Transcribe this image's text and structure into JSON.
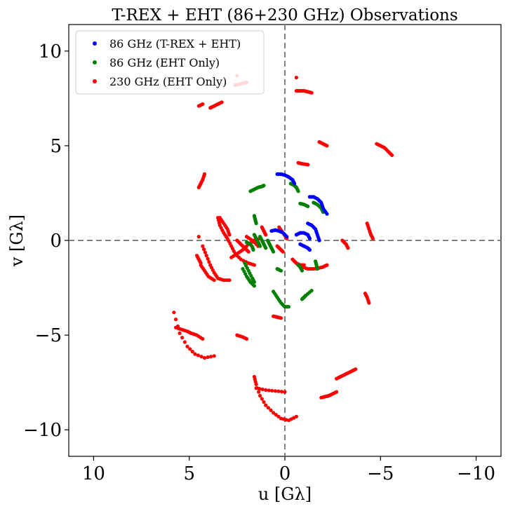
{
  "chart_data": {
    "type": "scatter",
    "title": "T-REX + EHT (86+230 GHz) Observations",
    "xlabel": "u [Gλ]",
    "ylabel": "v [Gλ]",
    "xlim": [
      11.3,
      -11.3
    ],
    "ylim": [
      -11.4,
      11.4
    ],
    "x_axis_reversed": true,
    "xticks": [
      10,
      5,
      0,
      -5,
      -10
    ],
    "yticks": [
      10,
      5,
      0,
      -5,
      -10
    ],
    "xtick_labels": [
      "10",
      "5",
      "0",
      "−5",
      "−10"
    ],
    "ytick_labels": [
      "10",
      "5",
      "0",
      "−5",
      "−10"
    ],
    "grid": false,
    "reference_lines": {
      "u": 0,
      "v": 0,
      "style": "dashed",
      "color": "#808080"
    },
    "legend": {
      "placement": "top-left",
      "entries": [
        "86 GHz (T-REX + EHT)",
        "86 GHz (EHT Only)",
        "230 GHz (EHT Only)"
      ]
    },
    "series": [
      {
        "name": "86 GHz (T-REX + EHT)",
        "color": "#0000ff",
        "arcs": [
          {
            "u": [
              0.4,
              0.2,
              0.0,
              -0.2,
              -0.4,
              -0.5
            ],
            "v": [
              3.5,
              3.5,
              3.45,
              3.35,
              3.2,
              3.0
            ]
          },
          {
            "u": [
              -1.3,
              -1.5,
              -1.7,
              -1.9,
              -2.0,
              -2.2
            ],
            "v": [
              2.3,
              2.3,
              2.2,
              2.0,
              1.7,
              1.4
            ]
          },
          {
            "u": [
              0.7,
              0.5,
              0.3,
              0.1,
              -0.1
            ],
            "v": [
              0.5,
              0.55,
              0.5,
              0.4,
              0.2
            ]
          },
          {
            "u": [
              -0.6,
              -0.8,
              -1.0,
              -1.2,
              -1.3
            ],
            "v": [
              0.3,
              0.4,
              0.4,
              0.3,
              0.1
            ]
          },
          {
            "u": [
              -1.2,
              -1.4,
              -1.6,
              -1.7,
              -1.8
            ],
            "v": [
              0.9,
              0.8,
              0.6,
              0.3,
              0.0
            ]
          },
          {
            "u": [
              -0.8,
              -1.0,
              -1.2,
              -1.3
            ],
            "v": [
              -0.2,
              -0.3,
              -0.4,
              -0.5
            ]
          }
        ]
      },
      {
        "name": "86 GHz (EHT Only)",
        "color": "#008000",
        "arcs": [
          {
            "u": [
              1.8,
              1.6,
              1.4,
              1.2,
              1.1
            ],
            "v": [
              2.6,
              2.7,
              2.8,
              2.85,
              2.9
            ]
          },
          {
            "u": [
              -0.3,
              -0.5,
              -0.6,
              -0.7
            ],
            "v": [
              3.0,
              2.9,
              2.8,
              2.6
            ]
          },
          {
            "u": [
              1.6,
              1.55,
              1.5
            ],
            "v": [
              1.3,
              1.1,
              0.9
            ]
          },
          {
            "u": [
              -0.8,
              -1.0,
              -1.2
            ],
            "v": [
              1.95,
              1.9,
              1.8
            ]
          },
          {
            "u": [
              -1.5,
              -1.7,
              -1.9,
              -2.0
            ],
            "v": [
              2.0,
              1.9,
              1.7,
              1.5
            ]
          },
          {
            "u": [
              2.0,
              1.8,
              1.7,
              1.65
            ],
            "v": [
              -0.1,
              -0.2,
              -0.35,
              -0.5
            ]
          },
          {
            "u": [
              1.6,
              1.5,
              1.4,
              1.3
            ],
            "v": [
              0.3,
              0.1,
              -0.1,
              -0.3
            ]
          },
          {
            "u": [
              1.3,
              1.2,
              1.1,
              1.0
            ],
            "v": [
              0.2,
              0.0,
              -0.2,
              -0.4
            ]
          },
          {
            "u": [
              0.9,
              0.8,
              0.7,
              0.6
            ],
            "v": [
              0.0,
              -0.2,
              -0.4,
              -0.6
            ]
          },
          {
            "u": [
              0.4,
              0.3,
              0.2
            ],
            "v": [
              -1.5,
              -1.55,
              -1.6
            ]
          },
          {
            "u": [
              2.1,
              1.9,
              1.7,
              1.6
            ],
            "v": [
              -1.2,
              -1.6,
              -2.0,
              -2.2
            ]
          },
          {
            "u": [
              2.2,
              2.0,
              1.8,
              1.6
            ],
            "v": [
              -1.5,
              -1.9,
              -2.2,
              -2.4
            ]
          },
          {
            "u": [
              0.6,
              0.4,
              0.2,
              0.0,
              -0.2
            ],
            "v": [
              -2.7,
              -3.0,
              -3.3,
              -3.5,
              -3.5
            ]
          },
          {
            "u": [
              -0.9,
              -1.0,
              -1.1,
              -1.4
            ],
            "v": [
              -3.1,
              -3.0,
              -2.9,
              -2.65
            ]
          },
          {
            "u": [
              -1.6,
              -1.65,
              -1.7
            ],
            "v": [
              -1.1,
              -1.3,
              -1.5
            ]
          },
          {
            "u": [
              -0.7,
              -0.8,
              -0.9
            ],
            "v": [
              -1.3,
              -1.4,
              -1.6
            ]
          }
        ]
      },
      {
        "name": "230 GHz (EHT Only)",
        "color": "#ff0000",
        "arcs": [
          {
            "u": [
              3.9,
              3.7,
              3.5,
              3.3
            ],
            "v": [
              7.0,
              7.1,
              7.2,
              7.3
            ]
          },
          {
            "u": [
              4.5,
              4.3
            ],
            "v": [
              7.1,
              7.2
            ]
          },
          {
            "u": [
              2.6,
              2.4,
              2.2,
              2.0
            ],
            "v": [
              8.2,
              8.25,
              8.3,
              8.35
            ]
          },
          {
            "u": [
              2.5
            ],
            "v": [
              8.7
            ]
          },
          {
            "u": [
              -0.6,
              -0.8,
              -1.0,
              -1.2,
              -1.4
            ],
            "v": [
              7.9,
              7.9,
              7.9,
              7.85,
              7.8
            ]
          },
          {
            "u": [
              -0.6
            ],
            "v": [
              8.6
            ]
          },
          {
            "u": [
              -1.8,
              -2.0,
              -2.2
            ],
            "v": [
              5.2,
              5.1,
              5.0
            ]
          },
          {
            "u": [
              -0.7,
              -0.9,
              -1.2
            ],
            "v": [
              4.1,
              4.05,
              4.0
            ]
          },
          {
            "u": [
              -4.8,
              -5.0,
              -5.2,
              -5.4,
              -5.6
            ],
            "v": [
              5.1,
              5.0,
              4.9,
              4.7,
              4.5
            ]
          },
          {
            "u": [
              4.5,
              4.4,
              4.3,
              4.2
            ],
            "v": [
              2.8,
              3.0,
              3.2,
              3.5
            ]
          },
          {
            "u": [
              4.5
            ],
            "v": [
              0.2
            ]
          },
          {
            "u": [
              3.5,
              3.4,
              3.2,
              3.0,
              2.8,
              2.6,
              2.3,
              1.9,
              1.6
            ],
            "v": [
              1.2,
              0.8,
              0.4,
              0.1,
              -0.3,
              -0.7,
              -1.0,
              -1.2,
              -1.3
            ]
          },
          {
            "u": [
              4.3,
              4.1,
              3.9,
              3.7,
              3.5,
              3.2,
              2.9
            ],
            "v": [
              -0.3,
              -0.8,
              -1.3,
              -1.7,
              -2.0,
              -2.1,
              -2.1
            ]
          },
          {
            "u": [
              2.8,
              2.5,
              2.2,
              1.9,
              1.6,
              1.3
            ],
            "v": [
              -0.9,
              -0.7,
              -0.5,
              -0.2,
              0.0,
              0.1
            ]
          },
          {
            "u": [
              2.0,
              1.7,
              1.4
            ],
            "v": [
              0.2,
              0.0,
              -0.3
            ]
          },
          {
            "u": [
              -0.4,
              -0.6,
              -0.8,
              -1.0
            ],
            "v": [
              -1.0,
              -1.2,
              -1.3,
              -1.3
            ]
          },
          {
            "u": [
              0.3,
              0.1,
              -0.1
            ],
            "v": [
              0.7,
              0.4,
              0.1
            ]
          },
          {
            "u": [
              -3.0,
              -3.2,
              -3.3
            ],
            "v": [
              0.0,
              -0.2,
              -0.4
            ]
          },
          {
            "u": [
              -4.3,
              -4.4,
              -4.5,
              -4.6
            ],
            "v": [
              0.9,
              0.6,
              0.3,
              0.1
            ]
          },
          {
            "u": [
              -4.2,
              -4.3,
              -4.4
            ],
            "v": [
              -2.8,
              -3.0,
              -3.3
            ]
          },
          {
            "u": [
              -2.7,
              -2.9,
              -3.1,
              -3.3,
              -3.5,
              -3.7
            ],
            "v": [
              -7.3,
              -7.2,
              -7.1,
              -7.0,
              -6.9,
              -6.8
            ]
          },
          {
            "u": [
              -1.9,
              -2.1,
              -2.3,
              -2.5,
              -2.7
            ],
            "v": [
              -8.3,
              -8.25,
              -8.2,
              -8.1,
              -8.0
            ]
          },
          {
            "u": [
              1.5,
              1.0,
              0.5,
              0.0
            ],
            "v": [
              -7.8,
              -7.9,
              -7.95,
              -8.0
            ]
          },
          {
            "u": [
              1.6,
              1.5,
              1.3,
              1.0,
              0.6,
              0.2,
              -0.2,
              -0.6
            ],
            "v": [
              -7.2,
              -7.6,
              -8.2,
              -8.7,
              -9.1,
              -9.4,
              -9.5,
              -9.3
            ]
          },
          {
            "u": [
              2.5,
              2.2,
              2.0
            ],
            "v": [
              -5.0,
              -5.1,
              -5.2
            ]
          },
          {
            "u": [
              0.6,
              0.4,
              0.2
            ],
            "v": [
              -4.0,
              -4.05,
              -4.1
            ]
          },
          {
            "u": [
              5.7,
              5.4,
              5.1,
              4.9,
              4.6,
              4.3
            ],
            "v": [
              -4.6,
              -4.7,
              -4.8,
              -4.9,
              -5.0,
              -5.2
            ]
          },
          {
            "u": [
              5.8,
              5.5,
              5.1,
              4.7,
              4.2,
              3.7
            ],
            "v": [
              -3.8,
              -4.9,
              -5.6,
              -6.0,
              -6.2,
              -6.1
            ]
          },
          {
            "u": [
              4.4,
              4.2,
              4.0,
              3.7
            ],
            "v": [
              -1.3,
              -1.6,
              -1.9,
              -2.1
            ]
          },
          {
            "u": [
              4.6,
              4.5,
              4.4
            ],
            "v": [
              -0.8,
              -1.0,
              -1.2
            ]
          },
          {
            "u": [
              3.4,
              3.2,
              3.0,
              2.9
            ],
            "v": [
              1.2,
              0.9,
              0.6,
              0.3
            ]
          },
          {
            "u": [
              2.5,
              2.3,
              2.1,
              1.9
            ],
            "v": [
              0.0,
              -0.2,
              -0.4,
              -0.6
            ]
          },
          {
            "u": [
              1.2,
              1.1,
              1.0
            ],
            "v": [
              0.7,
              0.5,
              0.3
            ]
          },
          {
            "u": [
              -0.5,
              -0.7,
              -0.9,
              -1.2,
              -1.5,
              -1.8,
              -2.0,
              -2.2
            ],
            "v": [
              -1.1,
              -1.3,
              -1.4,
              -1.5,
              -1.5,
              -1.45,
              -1.4,
              -1.3
            ]
          },
          {
            "u": [
              0.4,
              0.3,
              0.2,
              0.1
            ],
            "v": [
              -0.3,
              -0.4,
              -0.5,
              -0.6
            ]
          }
        ]
      }
    ]
  }
}
